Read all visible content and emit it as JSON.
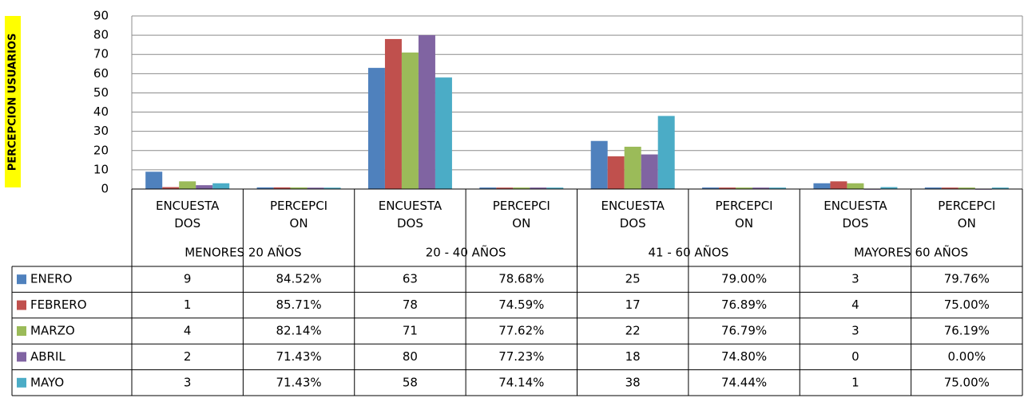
{
  "chart_data": {
    "type": "bar",
    "y_axis_label": "PERCEPCION USUARIOS",
    "categories": [
      "ENCUESTADOS",
      "PERCEPCION",
      "ENCUESTADOS",
      "PERCEPCION",
      "ENCUESTADOS",
      "PERCEPCION",
      "ENCUESTADOS",
      "PERCEPCION"
    ],
    "groups": [
      "MENORES 20 AÑOS",
      "20 - 40 AÑOS",
      "41 - 60 AÑOS",
      "MAYORES 60 AÑOS"
    ],
    "series": [
      {
        "name": "ENERO",
        "color": "#4f81bd",
        "values": [
          9,
          0.8452,
          63,
          0.7868,
          25,
          0.79,
          3,
          0.7976
        ],
        "value_labels": [
          "9",
          "84.52%",
          "63",
          "78.68%",
          "25",
          "79.00%",
          "3",
          "79.76%"
        ]
      },
      {
        "name": "FEBRERO",
        "color": "#c0504d",
        "values": [
          1,
          0.8571,
          78,
          0.7459,
          17,
          0.7689,
          4,
          0.75
        ],
        "value_labels": [
          "1",
          "85.71%",
          "78",
          "74.59%",
          "17",
          "76.89%",
          "4",
          "75.00%"
        ]
      },
      {
        "name": "MARZO",
        "color": "#9bbb59",
        "values": [
          4,
          0.8214,
          71,
          0.7762,
          22,
          0.7679,
          3,
          0.7619
        ],
        "value_labels": [
          "4",
          "82.14%",
          "71",
          "77.62%",
          "22",
          "76.79%",
          "3",
          "76.19%"
        ]
      },
      {
        "name": "ABRIL",
        "color": "#8064a2",
        "values": [
          2,
          0.7143,
          80,
          0.7723,
          18,
          0.748,
          0,
          0
        ],
        "value_labels": [
          "2",
          "71.43%",
          "80",
          "77.23%",
          "18",
          "74.80%",
          "0",
          "0.00%"
        ]
      },
      {
        "name": "MAYO",
        "color": "#4bacc6",
        "values": [
          3,
          0.7143,
          58,
          0.7414,
          38,
          0.7444,
          1,
          0.75
        ],
        "value_labels": [
          "3",
          "71.43%",
          "58",
          "74.14%",
          "38",
          "74.44%",
          "1",
          "75.00%"
        ]
      }
    ],
    "ylim": [
      0,
      90
    ],
    "yticks": [
      0,
      10,
      20,
      30,
      40,
      50,
      60,
      70,
      80,
      90
    ],
    "grid": true
  }
}
